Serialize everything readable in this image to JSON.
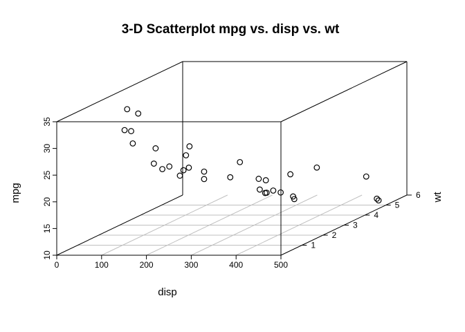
{
  "chart_data": {
    "type": "scatter",
    "title": "3-D Scatterplot mpg vs. disp vs. wt",
    "xlabel": "disp",
    "ylabel": "mpg",
    "zlabel": "wt",
    "xlim": [
      0,
      500
    ],
    "ylim": [
      10,
      35
    ],
    "zlim": [
      0,
      6
    ],
    "x_ticks": [
      "0",
      "100",
      "200",
      "300",
      "400",
      "500"
    ],
    "y_ticks": [
      "10",
      "15",
      "20",
      "25",
      "30",
      "35"
    ],
    "z_ticks": [
      "1",
      "2",
      "3",
      "4",
      "5",
      "6"
    ],
    "grid": true,
    "points": [
      {
        "disp": 160.0,
        "mpg": 21.0,
        "wt": 2.62
      },
      {
        "disp": 160.0,
        "mpg": 21.0,
        "wt": 2.875
      },
      {
        "disp": 108.0,
        "mpg": 22.8,
        "wt": 2.32
      },
      {
        "disp": 258.0,
        "mpg": 21.4,
        "wt": 3.215
      },
      {
        "disp": 360.0,
        "mpg": 18.7,
        "wt": 3.44
      },
      {
        "disp": 225.0,
        "mpg": 18.1,
        "wt": 3.46
      },
      {
        "disp": 360.0,
        "mpg": 14.3,
        "wt": 3.57
      },
      {
        "disp": 146.7,
        "mpg": 24.4,
        "wt": 3.19
      },
      {
        "disp": 140.8,
        "mpg": 22.8,
        "wt": 3.15
      },
      {
        "disp": 167.6,
        "mpg": 19.2,
        "wt": 3.44
      },
      {
        "disp": 167.6,
        "mpg": 17.8,
        "wt": 3.44
      },
      {
        "disp": 275.8,
        "mpg": 16.4,
        "wt": 4.07
      },
      {
        "disp": 275.8,
        "mpg": 17.3,
        "wt": 3.73
      },
      {
        "disp": 275.8,
        "mpg": 15.2,
        "wt": 3.78
      },
      {
        "disp": 472.0,
        "mpg": 10.4,
        "wt": 5.25
      },
      {
        "disp": 460.0,
        "mpg": 10.4,
        "wt": 5.424
      },
      {
        "disp": 440.0,
        "mpg": 14.7,
        "wt": 5.345
      },
      {
        "disp": 78.7,
        "mpg": 32.4,
        "wt": 2.2
      },
      {
        "disp": 75.7,
        "mpg": 30.4,
        "wt": 1.615
      },
      {
        "disp": 71.1,
        "mpg": 33.9,
        "wt": 1.835
      },
      {
        "disp": 120.1,
        "mpg": 21.5,
        "wt": 2.465
      },
      {
        "disp": 318.0,
        "mpg": 15.5,
        "wt": 3.52
      },
      {
        "disp": 304.0,
        "mpg": 15.2,
        "wt": 3.435
      },
      {
        "disp": 350.0,
        "mpg": 13.3,
        "wt": 3.84
      },
      {
        "disp": 400.0,
        "mpg": 19.2,
        "wt": 3.845
      },
      {
        "disp": 79.0,
        "mpg": 27.3,
        "wt": 1.935
      },
      {
        "disp": 120.3,
        "mpg": 26.0,
        "wt": 2.14
      },
      {
        "disp": 95.1,
        "mpg": 30.4,
        "wt": 1.513
      },
      {
        "disp": 351.0,
        "mpg": 15.8,
        "wt": 3.17
      },
      {
        "disp": 145.0,
        "mpg": 19.7,
        "wt": 2.77
      },
      {
        "disp": 301.0,
        "mpg": 15.0,
        "wt": 3.57
      },
      {
        "disp": 121.0,
        "mpg": 21.4,
        "wt": 2.78
      }
    ]
  }
}
